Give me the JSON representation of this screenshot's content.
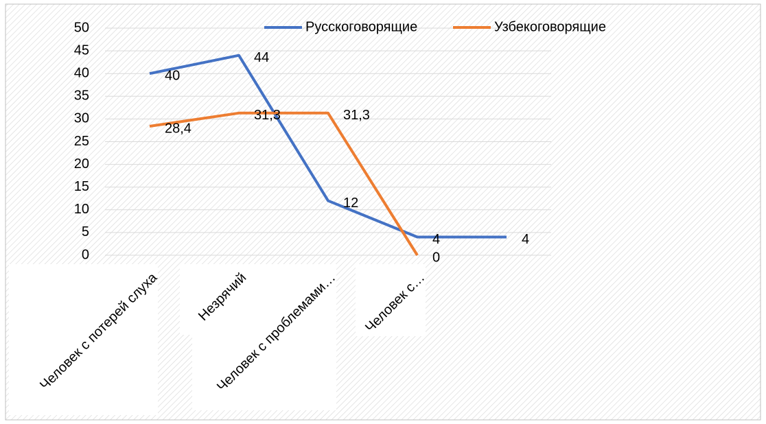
{
  "chart_data": {
    "type": "line",
    "categories": [
      "Человек с потерей слуха",
      "Незрячий",
      "Человек с проблемами…",
      "Человек с…",
      null
    ],
    "series": [
      {
        "name": "Русскоговорящие",
        "color": "#4472c4",
        "values": [
          40,
          44,
          12,
          4,
          4
        ]
      },
      {
        "name": "Узбекоговорящие",
        "color": "#ed7d31",
        "values": [
          28.4,
          31.3,
          31.3,
          0,
          null
        ],
        "value_labels": [
          "28,4",
          "31,3",
          "31,3",
          "0",
          null
        ]
      }
    ],
    "ylim": [
      0,
      50
    ],
    "yticks": [
      0,
      5,
      10,
      15,
      20,
      25,
      30,
      35,
      40,
      45,
      50
    ],
    "grid": true,
    "legend": "top"
  }
}
